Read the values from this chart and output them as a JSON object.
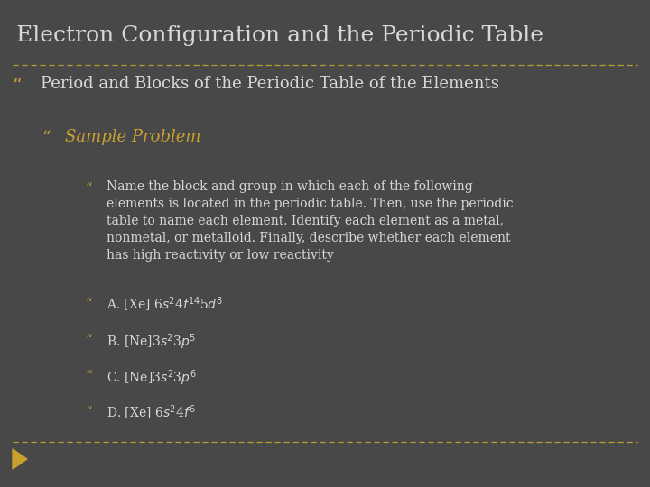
{
  "bg_color": "#484848",
  "title": "Electron Configuration and the Periodic Table",
  "title_color": "#d8d8d8",
  "title_fontsize": 18,
  "dashed_line_color": "#b8a030",
  "bullet_color": "#c8a030",
  "bullet1": "Period and Blocks of the Periodic Table of the Elements",
  "bullet1_color": "#d8d8d8",
  "bullet1_fontsize": 13,
  "bullet2": "Sample Problem",
  "bullet2_color": "#c8a030",
  "bullet2_fontsize": 13,
  "body_color": "#d8d8d8",
  "body_fontsize": 10,
  "body_text": "Name the block and group in which each of the following\nelements is located in the periodic table. Then, use the periodic\ntable to name each element. Identify each element as a metal,\nnonmetal, or metalloid. Finally, describe whether each element\nhas high reactivity or low reactivity",
  "bottom_line_color": "#b8a030",
  "arrow_color": "#c8a030"
}
